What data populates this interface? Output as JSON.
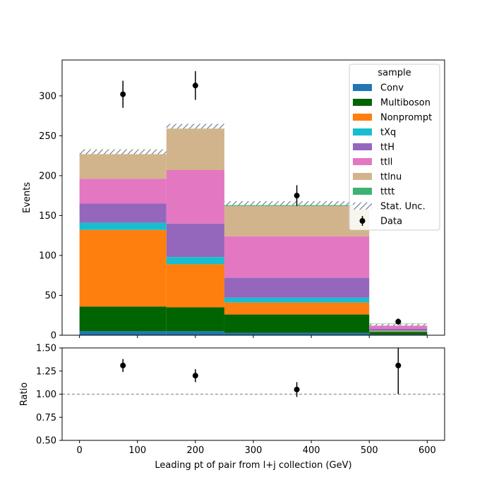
{
  "chart_data": [
    {
      "type": "bar",
      "stacked": true,
      "xlabel": "",
      "ylabel": "Events",
      "xlim": [
        -30,
        630
      ],
      "ylim": [
        0,
        345
      ],
      "bin_edges": [
        0,
        150,
        250,
        500,
        600
      ],
      "yticks": [
        0,
        50,
        100,
        150,
        200,
        250,
        300
      ],
      "xticks": [
        0,
        100,
        200,
        300,
        400,
        500,
        600
      ],
      "series": [
        {
          "name": "Conv",
          "color": "#1f77b4",
          "values": [
            5,
            5,
            3,
            1
          ]
        },
        {
          "name": "Multiboson",
          "color": "#006400",
          "values": [
            31,
            30,
            23,
            3
          ]
        },
        {
          "name": "Nonprompt",
          "color": "#ff7f0e",
          "values": [
            96,
            54,
            15,
            1
          ]
        },
        {
          "name": "tXq",
          "color": "#17becf",
          "values": [
            9,
            9,
            6,
            1
          ]
        },
        {
          "name": "ttH",
          "color": "#9467bd",
          "values": [
            24,
            42,
            25,
            2
          ]
        },
        {
          "name": "ttll",
          "color": "#e377c2",
          "values": [
            31,
            67,
            52,
            4
          ]
        },
        {
          "name": "ttlnu",
          "color": "#d2b48c",
          "values": [
            32,
            52,
            38,
            2
          ]
        },
        {
          "name": "tttt",
          "color": "#3cb371",
          "values": [
            2,
            3,
            4,
            0.5
          ]
        }
      ],
      "stat_unc": {
        "name": "Stat. Unc.",
        "up": [
          233,
          265,
          168,
          14
        ],
        "down": [
          227,
          259,
          163,
          12
        ]
      },
      "data_points": {
        "name": "Data",
        "x": [
          75,
          200,
          375,
          550
        ],
        "y": [
          302,
          313,
          175,
          17
        ],
        "yerr": [
          17,
          18,
          13,
          4
        ]
      },
      "legend": {
        "title": "sample",
        "position": "upper right"
      }
    },
    {
      "type": "scatter",
      "xlabel": "Leading pt of pair from l+j collection (GeV)",
      "ylabel": "Ratio",
      "xlim": [
        -30,
        630
      ],
      "ylim": [
        0.5,
        1.5
      ],
      "yticks": [
        "0.50",
        "0.75",
        "1.00",
        "1.25",
        "1.50"
      ],
      "xticks": [
        0,
        100,
        200,
        300,
        400,
        500,
        600
      ],
      "reference_line": 1.0,
      "points": {
        "x": [
          75,
          200,
          375,
          550
        ],
        "y": [
          1.31,
          1.2,
          1.05,
          1.31
        ],
        "yerr": [
          0.07,
          0.07,
          0.08,
          0.31
        ]
      }
    }
  ]
}
